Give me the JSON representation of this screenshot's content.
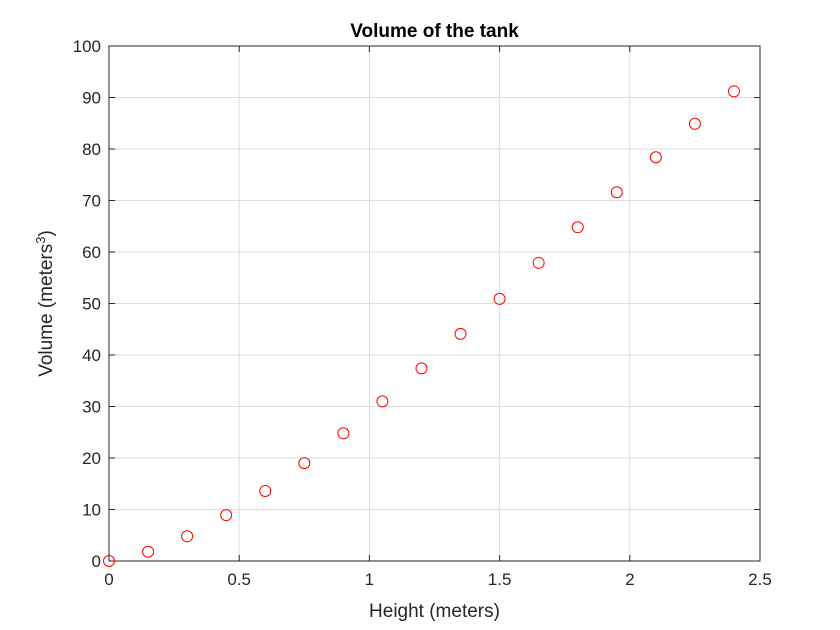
{
  "chart_data": {
    "type": "scatter",
    "title": "Volume of the tank",
    "xlabel": "Height (meters)",
    "ylabel": "Volume (meters",
    "ylabel_superscript": "3",
    "ylabel_close": ")",
    "xlim": [
      0,
      2.5
    ],
    "ylim": [
      0,
      100
    ],
    "xticks": [
      0,
      0.5,
      1,
      1.5,
      2,
      2.5
    ],
    "xtick_labels": [
      "0",
      "0.5",
      "1",
      "1.5",
      "2",
      "2.5"
    ],
    "yticks": [
      0,
      10,
      20,
      30,
      40,
      50,
      60,
      70,
      80,
      90,
      100
    ],
    "ytick_labels": [
      "0",
      "10",
      "20",
      "30",
      "40",
      "50",
      "60",
      "70",
      "80",
      "90",
      "100"
    ],
    "grid": true,
    "marker": "circle-open",
    "marker_color": "#ff0000",
    "series": [
      {
        "x": [
          0,
          0.15,
          0.3,
          0.45,
          0.6,
          0.75,
          0.9,
          1.05,
          1.2,
          1.35,
          1.5,
          1.65,
          1.8,
          1.95,
          2.1,
          2.25,
          2.4
        ],
        "y": [
          0,
          1.8,
          4.8,
          8.9,
          13.6,
          19.0,
          24.8,
          31.0,
          37.4,
          44.1,
          50.9,
          57.9,
          64.8,
          71.6,
          78.4,
          84.9,
          91.2
        ]
      }
    ]
  }
}
